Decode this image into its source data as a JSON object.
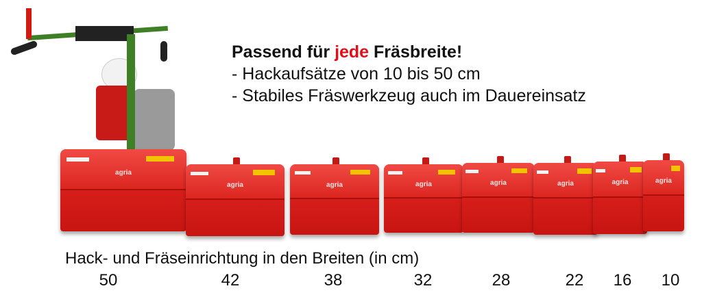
{
  "headline": {
    "line1_prefix": "Passend für ",
    "line1_highlight": "jede",
    "line1_suffix": " Fräsbreite!",
    "line2": "- Hackaufsätze von 10 bis 50 cm",
    "line3": "- Stabiles Fräswerkzeug auch im Dauereinsatz"
  },
  "caption": "Hack- und Fräseinrichtung in den Breiten (in cm)",
  "brand": "agria",
  "widths": [
    "50",
    "42",
    "38",
    "32",
    "28",
    "22",
    "16",
    "10"
  ],
  "colors": {
    "accent": "#e0101a",
    "hood": "#d8201c",
    "frame": "#4a8a2a"
  }
}
